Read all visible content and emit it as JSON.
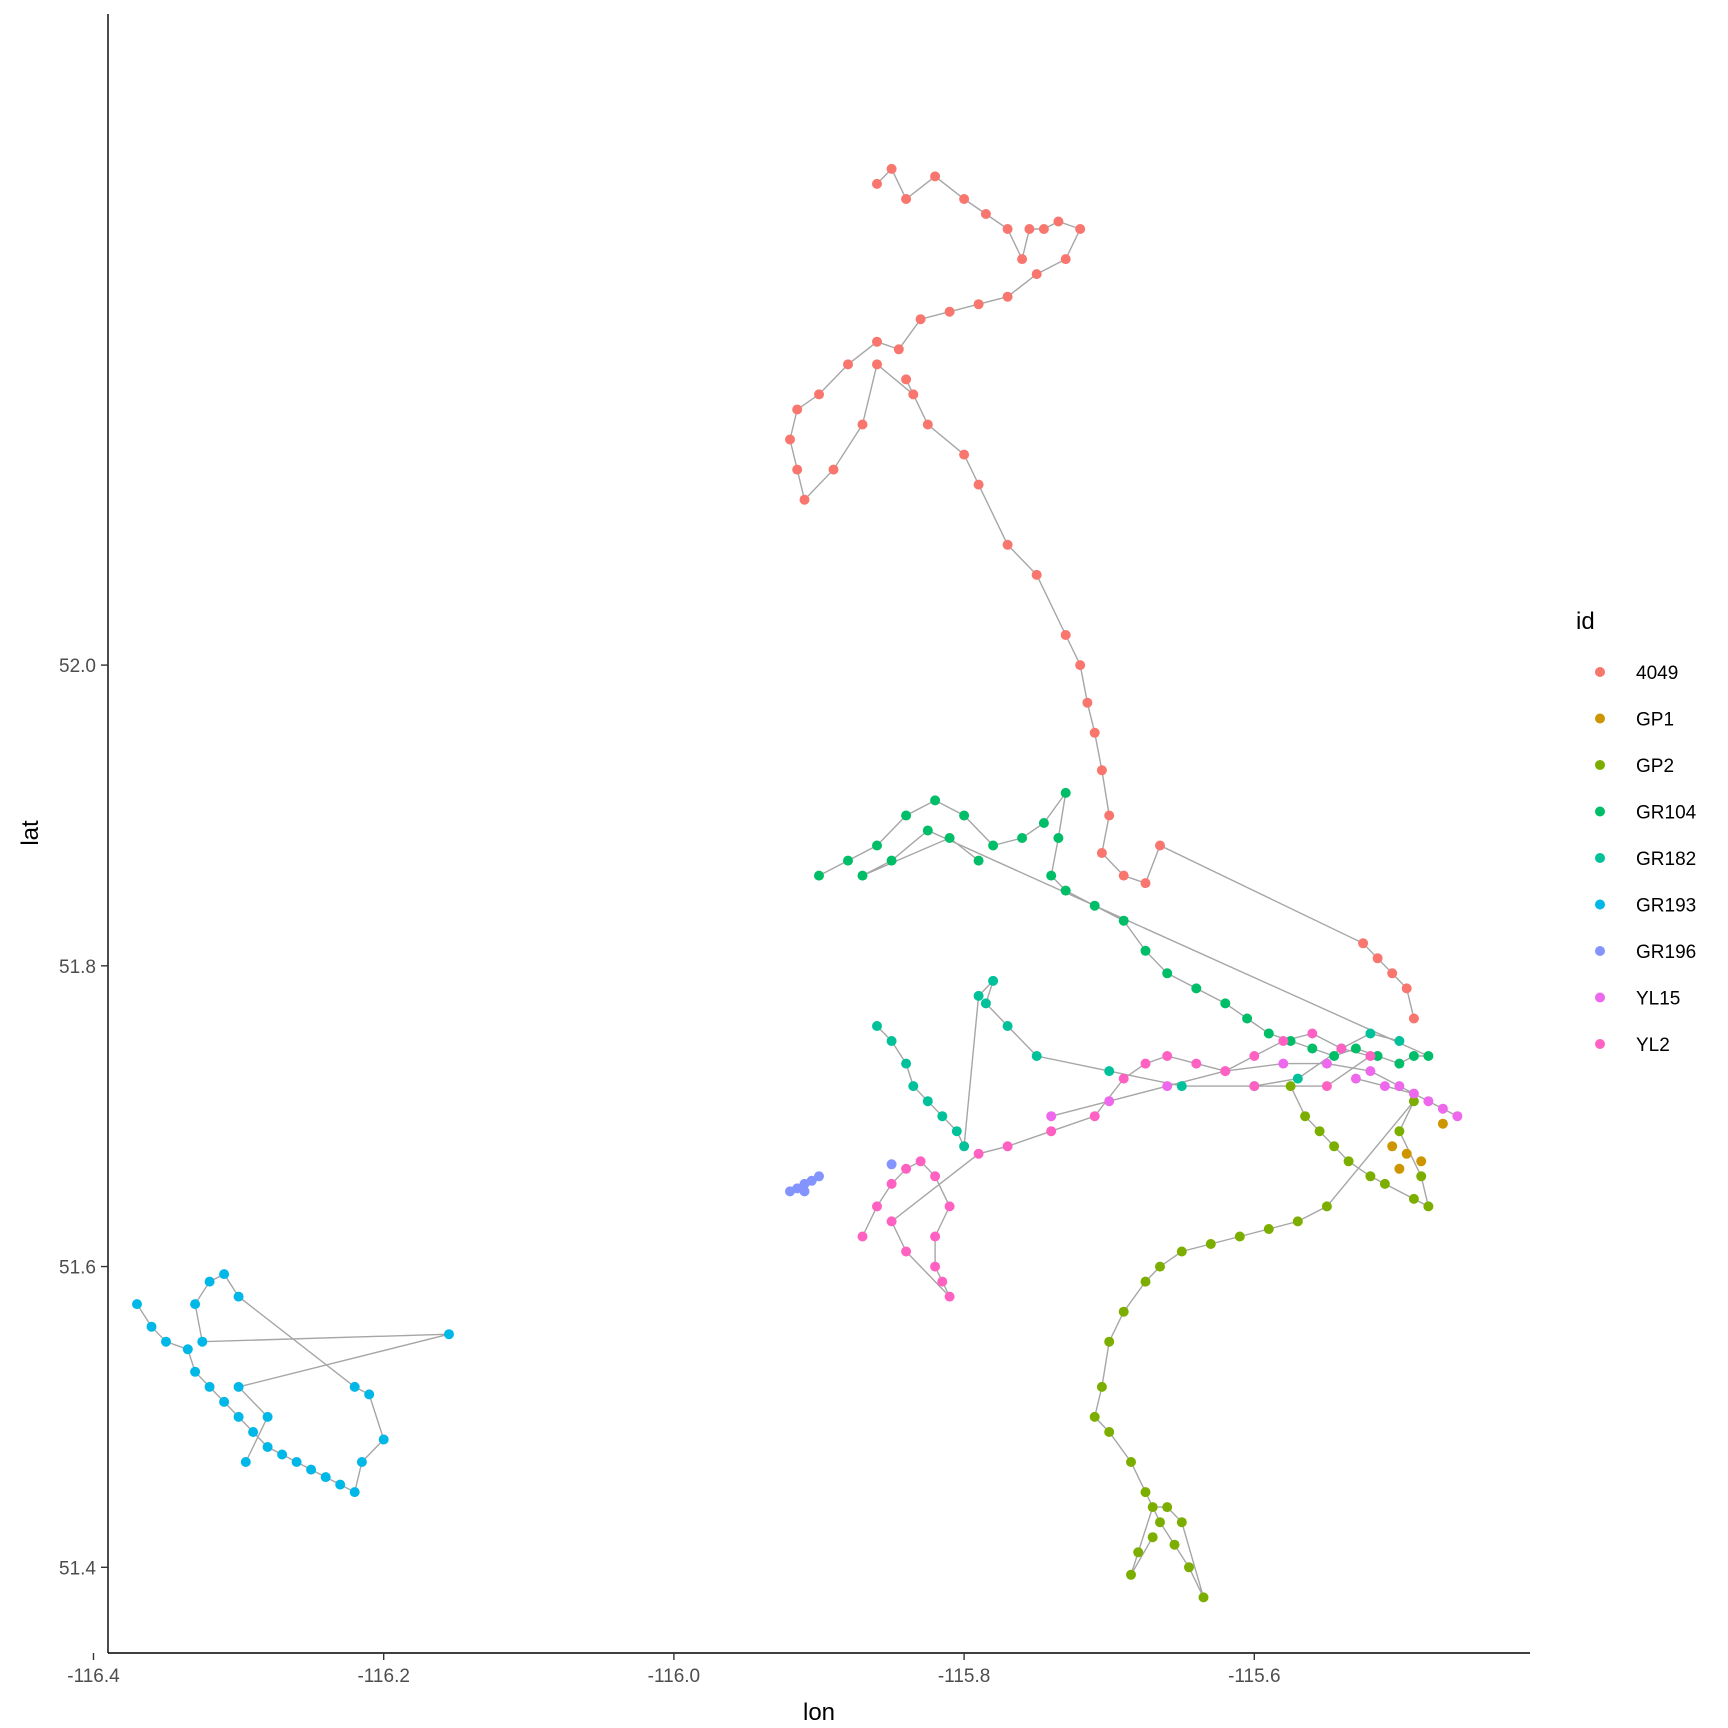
{
  "chart_data": {
    "type": "scatter",
    "title": "",
    "xlabel": "lon",
    "ylabel": "lat",
    "xlim": [
      -116.39,
      -115.41
    ],
    "ylim": [
      51.343,
      52.433
    ],
    "x_ticks": [
      -116.4,
      -116.2,
      -116.0,
      -115.8,
      -115.6
    ],
    "x_tick_labels": [
      "-116.4",
      "-116.2",
      "-116.0",
      "-115.8",
      "-115.6"
    ],
    "y_ticks": [
      51.4,
      51.6,
      51.8,
      52.0
    ],
    "y_tick_labels": [
      "51.4",
      "51.6",
      "51.8",
      "52.0"
    ],
    "grid": false,
    "path_color": "#a6a6a6",
    "legend": {
      "title": "id",
      "position": "right"
    },
    "series": [
      {
        "name": "4049",
        "color": "#F8766D",
        "points": [
          [
            -115.86,
            52.32
          ],
          [
            -115.85,
            52.33
          ],
          [
            -115.84,
            52.31
          ],
          [
            -115.82,
            52.325
          ],
          [
            -115.8,
            52.31
          ],
          [
            -115.785,
            52.3
          ],
          [
            -115.77,
            52.29
          ],
          [
            -115.76,
            52.27
          ],
          [
            -115.755,
            52.29
          ],
          [
            -115.745,
            52.29
          ],
          [
            -115.735,
            52.295
          ],
          [
            -115.72,
            52.29
          ],
          [
            -115.73,
            52.27
          ],
          [
            -115.75,
            52.26
          ],
          [
            -115.77,
            52.245
          ],
          [
            -115.79,
            52.24
          ],
          [
            -115.81,
            52.235
          ],
          [
            -115.83,
            52.23
          ],
          [
            -115.845,
            52.21
          ],
          [
            -115.86,
            52.215
          ],
          [
            -115.88,
            52.2
          ],
          [
            -115.9,
            52.18
          ],
          [
            -115.915,
            52.17
          ],
          [
            -115.92,
            52.15
          ],
          [
            -115.915,
            52.13
          ],
          [
            -115.91,
            52.11
          ],
          [
            -115.89,
            52.13
          ],
          [
            -115.87,
            52.16
          ],
          [
            -115.86,
            52.2
          ],
          [
            -115.835,
            52.18
          ],
          [
            -115.84,
            52.19
          ],
          [
            -115.825,
            52.16
          ],
          [
            -115.8,
            52.14
          ],
          [
            -115.79,
            52.12
          ],
          [
            -115.77,
            52.08
          ],
          [
            -115.75,
            52.06
          ],
          [
            -115.73,
            52.02
          ],
          [
            -115.72,
            52.0
          ],
          [
            -115.715,
            51.975
          ],
          [
            -115.71,
            51.955
          ],
          [
            -115.705,
            51.93
          ],
          [
            -115.7,
            51.9
          ],
          [
            -115.705,
            51.875
          ],
          [
            -115.69,
            51.86
          ],
          [
            -115.675,
            51.855
          ],
          [
            -115.665,
            51.88
          ],
          [
            -115.525,
            51.815
          ],
          [
            -115.515,
            51.805
          ],
          [
            -115.505,
            51.795
          ],
          [
            -115.495,
            51.785
          ],
          [
            -115.49,
            51.765
          ]
        ],
        "path": true
      },
      {
        "name": "GP1",
        "color": "#CD9600",
        "points": [
          [
            -115.47,
            51.695
          ],
          [
            -115.485,
            51.67
          ],
          [
            -115.495,
            51.675
          ],
          [
            -115.5,
            51.665
          ],
          [
            -115.505,
            51.68
          ]
        ],
        "path": false
      },
      {
        "name": "GP2",
        "color": "#7CAE00",
        "points": [
          [
            -115.575,
            51.72
          ],
          [
            -115.565,
            51.7
          ],
          [
            -115.555,
            51.69
          ],
          [
            -115.545,
            51.68
          ],
          [
            -115.535,
            51.67
          ],
          [
            -115.52,
            51.66
          ],
          [
            -115.51,
            51.655
          ],
          [
            -115.49,
            51.645
          ],
          [
            -115.48,
            51.64
          ],
          [
            -115.485,
            51.66
          ],
          [
            -115.5,
            51.69
          ],
          [
            -115.49,
            51.71
          ],
          [
            -115.55,
            51.64
          ],
          [
            -115.57,
            51.63
          ],
          [
            -115.59,
            51.625
          ],
          [
            -115.61,
            51.62
          ],
          [
            -115.63,
            51.615
          ],
          [
            -115.65,
            51.61
          ],
          [
            -115.665,
            51.6
          ],
          [
            -115.675,
            51.59
          ],
          [
            -115.69,
            51.57
          ],
          [
            -115.7,
            51.55
          ],
          [
            -115.705,
            51.52
          ],
          [
            -115.71,
            51.5
          ],
          [
            -115.7,
            51.49
          ],
          [
            -115.685,
            51.47
          ],
          [
            -115.675,
            51.45
          ],
          [
            -115.665,
            51.43
          ],
          [
            -115.655,
            51.415
          ],
          [
            -115.645,
            51.4
          ],
          [
            -115.635,
            51.38
          ],
          [
            -115.65,
            51.43
          ],
          [
            -115.66,
            51.44
          ],
          [
            -115.67,
            51.44
          ],
          [
            -115.68,
            51.41
          ],
          [
            -115.685,
            51.395
          ],
          [
            -115.67,
            51.42
          ]
        ],
        "path": true
      },
      {
        "name": "GR104",
        "color": "#00BE67",
        "points": [
          [
            -115.9,
            51.86
          ],
          [
            -115.88,
            51.87
          ],
          [
            -115.86,
            51.88
          ],
          [
            -115.84,
            51.9
          ],
          [
            -115.82,
            51.91
          ],
          [
            -115.8,
            51.9
          ],
          [
            -115.78,
            51.88
          ],
          [
            -115.76,
            51.885
          ],
          [
            -115.745,
            51.895
          ],
          [
            -115.73,
            51.915
          ],
          [
            -115.735,
            51.885
          ],
          [
            -115.74,
            51.86
          ],
          [
            -115.73,
            51.85
          ],
          [
            -115.71,
            51.84
          ],
          [
            -115.69,
            51.83
          ],
          [
            -115.675,
            51.81
          ],
          [
            -115.66,
            51.795
          ],
          [
            -115.64,
            51.785
          ],
          [
            -115.62,
            51.775
          ],
          [
            -115.605,
            51.765
          ],
          [
            -115.59,
            51.755
          ],
          [
            -115.575,
            51.75
          ],
          [
            -115.56,
            51.745
          ],
          [
            -115.545,
            51.74
          ],
          [
            -115.53,
            51.745
          ],
          [
            -115.515,
            51.74
          ],
          [
            -115.5,
            51.735
          ],
          [
            -115.49,
            51.74
          ],
          [
            -115.48,
            51.74
          ],
          [
            -115.825,
            51.89
          ],
          [
            -115.85,
            51.87
          ],
          [
            -115.87,
            51.86
          ],
          [
            -115.81,
            51.885
          ],
          [
            -115.79,
            51.87
          ]
        ],
        "path": true
      },
      {
        "name": "GR182",
        "color": "#00C19A",
        "points": [
          [
            -115.86,
            51.76
          ],
          [
            -115.85,
            51.75
          ],
          [
            -115.84,
            51.735
          ],
          [
            -115.835,
            51.72
          ],
          [
            -115.825,
            51.71
          ],
          [
            -115.815,
            51.7
          ],
          [
            -115.805,
            51.69
          ],
          [
            -115.8,
            51.68
          ],
          [
            -115.79,
            51.78
          ],
          [
            -115.78,
            51.79
          ],
          [
            -115.785,
            51.775
          ],
          [
            -115.77,
            51.76
          ],
          [
            -115.75,
            51.74
          ],
          [
            -115.7,
            51.73
          ],
          [
            -115.65,
            51.72
          ],
          [
            -115.6,
            51.72
          ],
          [
            -115.57,
            51.725
          ],
          [
            -115.54,
            51.745
          ],
          [
            -115.52,
            51.755
          ],
          [
            -115.5,
            51.75
          ]
        ],
        "path": true
      },
      {
        "name": "GR193",
        "color": "#00B8E7",
        "points": [
          [
            -116.37,
            51.575
          ],
          [
            -116.36,
            51.56
          ],
          [
            -116.35,
            51.55
          ],
          [
            -116.335,
            51.545
          ],
          [
            -116.33,
            51.53
          ],
          [
            -116.32,
            51.52
          ],
          [
            -116.31,
            51.51
          ],
          [
            -116.3,
            51.5
          ],
          [
            -116.29,
            51.49
          ],
          [
            -116.28,
            51.48
          ],
          [
            -116.27,
            51.475
          ],
          [
            -116.26,
            51.47
          ],
          [
            -116.25,
            51.465
          ],
          [
            -116.24,
            51.46
          ],
          [
            -116.23,
            51.455
          ],
          [
            -116.22,
            51.45
          ],
          [
            -116.215,
            51.47
          ],
          [
            -116.2,
            51.485
          ],
          [
            -116.21,
            51.515
          ],
          [
            -116.22,
            51.52
          ],
          [
            -116.3,
            51.58
          ],
          [
            -116.31,
            51.595
          ],
          [
            -116.32,
            51.59
          ],
          [
            -116.33,
            51.575
          ],
          [
            -116.325,
            51.55
          ],
          [
            -116.155,
            51.555
          ],
          [
            -116.3,
            51.52
          ],
          [
            -116.28,
            51.5
          ],
          [
            -116.295,
            51.47
          ]
        ],
        "path": true
      },
      {
        "name": "GR196",
        "color": "#8494FF",
        "points": [
          [
            -115.92,
            51.65
          ],
          [
            -115.915,
            51.652
          ],
          [
            -115.91,
            51.655
          ],
          [
            -115.905,
            51.657
          ],
          [
            -115.9,
            51.66
          ],
          [
            -115.91,
            51.65
          ],
          [
            -115.85,
            51.668
          ]
        ],
        "path": false
      },
      {
        "name": "YL15",
        "color": "#ED68ED",
        "points": [
          [
            -115.74,
            51.7
          ],
          [
            -115.7,
            51.71
          ],
          [
            -115.66,
            51.72
          ],
          [
            -115.62,
            51.73
          ],
          [
            -115.58,
            51.735
          ],
          [
            -115.55,
            51.735
          ],
          [
            -115.52,
            51.73
          ],
          [
            -115.5,
            51.72
          ],
          [
            -115.48,
            51.71
          ],
          [
            -115.46,
            51.7
          ],
          [
            -115.47,
            51.705
          ],
          [
            -115.49,
            51.715
          ],
          [
            -115.51,
            51.72
          ],
          [
            -115.53,
            51.725
          ]
        ],
        "path": true
      },
      {
        "name": "YL2",
        "color": "#FF61C3",
        "points": [
          [
            -115.87,
            51.62
          ],
          [
            -115.86,
            51.64
          ],
          [
            -115.85,
            51.655
          ],
          [
            -115.84,
            51.665
          ],
          [
            -115.83,
            51.67
          ],
          [
            -115.82,
            51.66
          ],
          [
            -115.81,
            51.64
          ],
          [
            -115.82,
            51.62
          ],
          [
            -115.82,
            51.6
          ],
          [
            -115.815,
            51.59
          ],
          [
            -115.81,
            51.58
          ],
          [
            -115.84,
            51.61
          ],
          [
            -115.85,
            51.63
          ],
          [
            -115.79,
            51.675
          ],
          [
            -115.77,
            51.68
          ],
          [
            -115.74,
            51.69
          ],
          [
            -115.71,
            51.7
          ],
          [
            -115.69,
            51.725
          ],
          [
            -115.675,
            51.735
          ],
          [
            -115.66,
            51.74
          ],
          [
            -115.64,
            51.735
          ],
          [
            -115.62,
            51.73
          ],
          [
            -115.6,
            51.74
          ],
          [
            -115.58,
            51.75
          ],
          [
            -115.56,
            51.755
          ],
          [
            -115.54,
            51.745
          ],
          [
            -115.52,
            51.74
          ],
          [
            -115.55,
            51.72
          ],
          [
            -115.6,
            51.72
          ]
        ],
        "path": true
      }
    ]
  }
}
